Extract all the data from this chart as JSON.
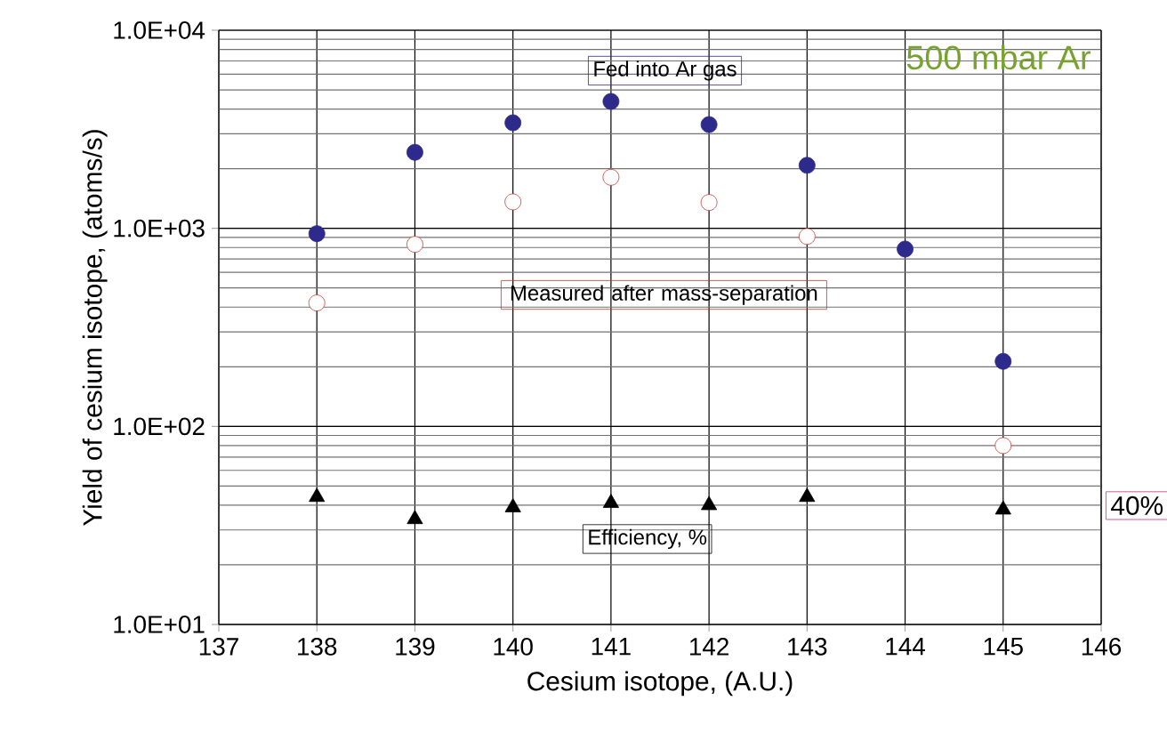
{
  "chart_data": {
    "type": "scatter",
    "xlabel": "Cesium isotope, (A.U.)",
    "ylabel": "Yield of cesium isotope, (atoms/s)",
    "log": "y",
    "grid": true,
    "legend": false,
    "x": [
      138,
      139,
      140,
      141,
      142,
      143,
      144,
      145
    ],
    "xlim": [
      137,
      146
    ],
    "xticks": [
      137,
      138,
      139,
      140,
      141,
      142,
      143,
      144,
      145,
      146
    ],
    "ylim": [
      10,
      10000
    ],
    "yticks": [
      {
        "value": 10,
        "label": "1.0E+01"
      },
      {
        "value": 100,
        "label": "1.0E+02"
      },
      {
        "value": 1000,
        "label": "1.0E+03"
      },
      {
        "value": 10000,
        "label": "1.0E+04"
      }
    ],
    "series": [
      {
        "name": "Fed into Ar gas",
        "color": "#2e2a8c",
        "marker": "circle",
        "values": [
          940,
          2420,
          3410,
          4370,
          3340,
          2080,
          786,
          213
        ]
      },
      {
        "name": "Measured after mass-separation",
        "color": "#c8382e",
        "marker": "circle",
        "values": [
          420,
          830,
          1360,
          1810,
          1350,
          910,
          null,
          80
        ]
      },
      {
        "name": "Efficiency, %",
        "color": "#000000",
        "marker": "triangle",
        "values": [
          44,
          34,
          39,
          41,
          40,
          44,
          null,
          38
        ]
      }
    ],
    "annotations": [
      "500 mbar Ar",
      "40%"
    ]
  }
}
